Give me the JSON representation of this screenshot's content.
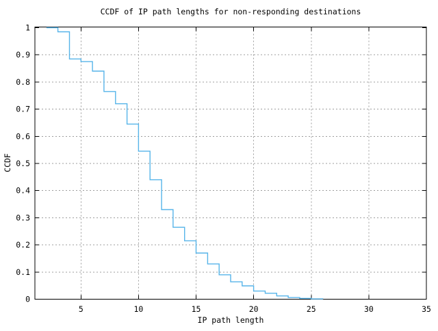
{
  "page": {
    "background": "#ffffff"
  },
  "chart_data": {
    "type": "line",
    "step_mode": "steps-post",
    "title": "CCDF of IP path lengths for non-responding destinations",
    "xlabel": "IP path length",
    "ylabel": "CCDF",
    "xlim": [
      1,
      35
    ],
    "ylim": [
      0,
      1
    ],
    "x_ticks": [
      5,
      10,
      15,
      20,
      25,
      30,
      35
    ],
    "x_tick_labels": [
      "5",
      "10",
      "15",
      "20",
      "25",
      "30",
      "35"
    ],
    "y_ticks": [
      0,
      0.1,
      0.2,
      0.3,
      0.4,
      0.5,
      0.6,
      0.7,
      0.8,
      0.9,
      1
    ],
    "y_tick_labels": [
      "0",
      "0.1",
      "0.2",
      "0.3",
      "0.4",
      "0.5",
      "0.6",
      "0.7",
      "0.8",
      "0.9",
      "1"
    ],
    "grid": true,
    "legend": "none",
    "colors": {
      "line": "#56b4e9",
      "grid": "#9c9c9c",
      "frame": "#000000",
      "text": "#000000"
    },
    "series": [
      {
        "name": "CCDF",
        "x": [
          2,
          3,
          4,
          5,
          6,
          7,
          8,
          9,
          10,
          11,
          12,
          13,
          14,
          15,
          16,
          17,
          18,
          19,
          20,
          21,
          22,
          23,
          24,
          25,
          26
        ],
        "y": [
          1.0,
          0.985,
          0.885,
          0.875,
          0.84,
          0.765,
          0.72,
          0.645,
          0.545,
          0.44,
          0.33,
          0.265,
          0.215,
          0.17,
          0.13,
          0.09,
          0.064,
          0.049,
          0.03,
          0.022,
          0.012,
          0.006,
          0.003,
          0.001,
          0
        ]
      }
    ]
  }
}
